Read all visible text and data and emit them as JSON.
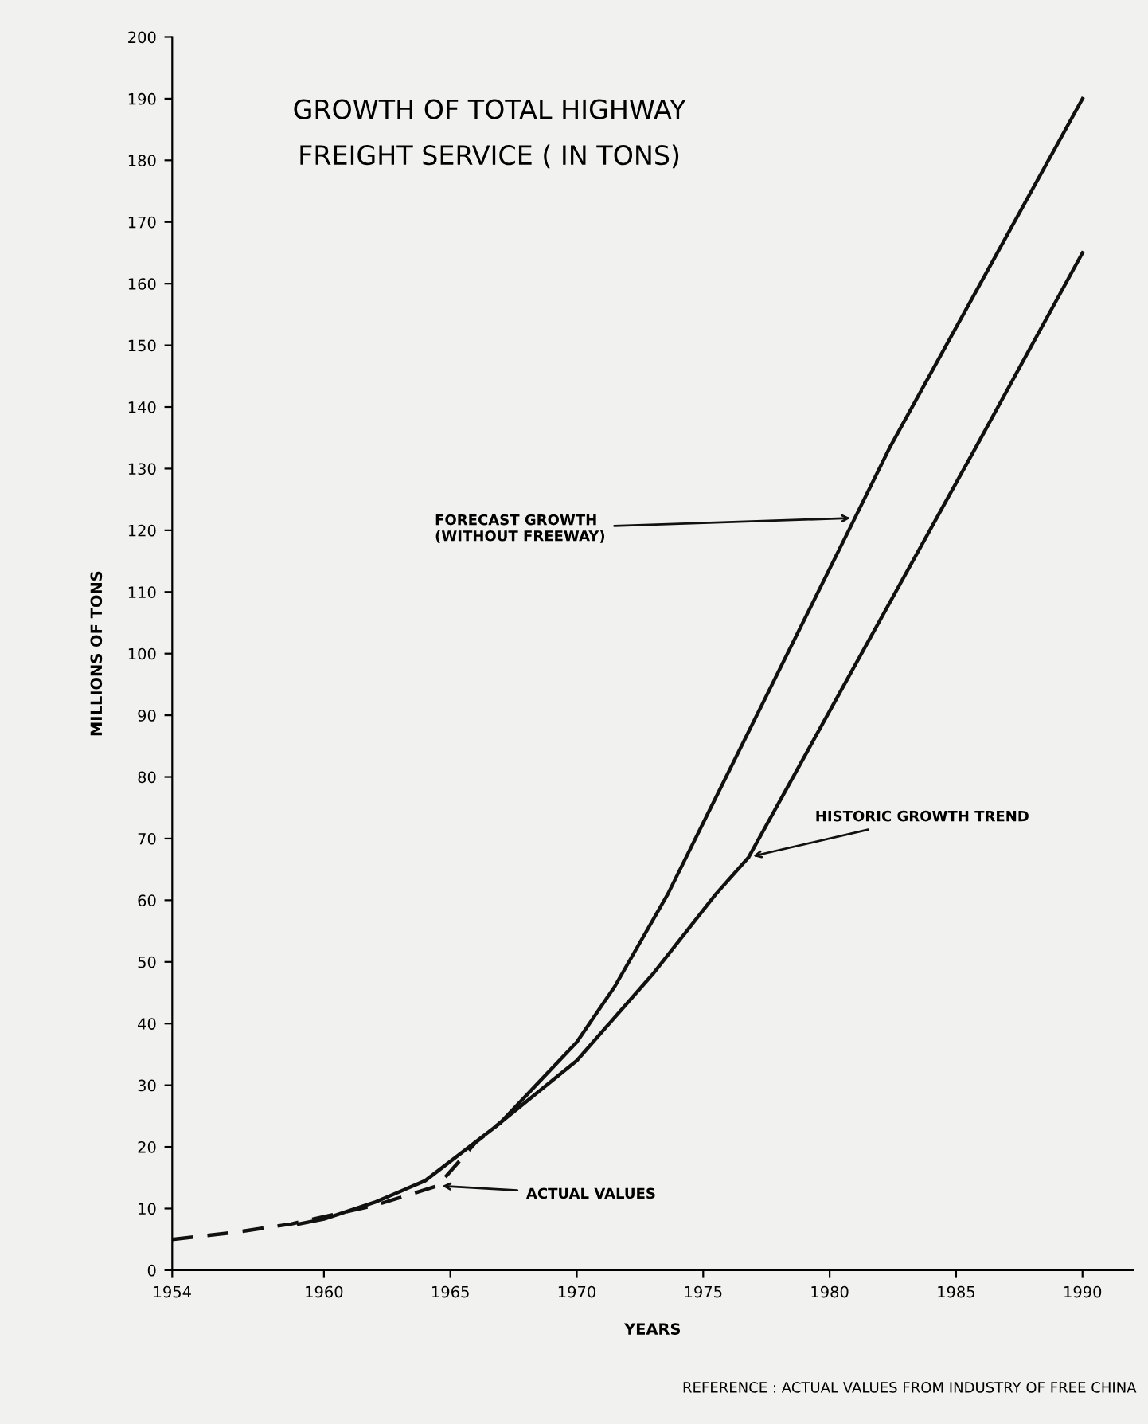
{
  "chart_data": {
    "type": "line",
    "title": "GROWTH OF TOTAL HIGHWAY\nFREIGHT SERVICE ( IN TONS)",
    "xlabel": "YEARS",
    "ylabel": "MILLIONS OF TONS",
    "series": [
      {
        "x": [
          1967,
          1970,
          1971.5,
          1973.6,
          1981,
          1982.4,
          1990
        ],
        "values": [
          24,
          37,
          46,
          61,
          122,
          133.6,
          190
        ],
        "color": "#111111",
        "line_style": "solid"
      },
      {
        "x": [
          1959,
          1960,
          1962,
          1964,
          1966.7,
          1970,
          1973,
          1975.5,
          1976.8,
          1985.8,
          1990
        ],
        "values": [
          7.5,
          8.3,
          11,
          14.5,
          23,
          34,
          48,
          61,
          67,
          133.6,
          165
        ],
        "color": "#111111",
        "line_style": "solid"
      },
      {
        "x": [
          1954,
          1956.6,
          1958.7,
          1962,
          1964.5,
          1966,
          1967
        ],
        "values": [
          5,
          6.2,
          7.5,
          10.5,
          13.7,
          20.7,
          24
        ],
        "color": "#111111",
        "line_style": "dashed"
      }
    ],
    "xlim": [
      1954,
      1992
    ],
    "xticks": [
      1954,
      1960,
      1965,
      1970,
      1975,
      1980,
      1985,
      1990
    ],
    "ylim": [
      0,
      200
    ],
    "yticks": [
      0,
      10,
      20,
      30,
      40,
      50,
      60,
      70,
      80,
      90,
      100,
      110,
      120,
      130,
      140,
      150,
      160,
      170,
      180,
      190,
      200
    ],
    "grid": false,
    "legend": false,
    "marker": "none",
    "annotations": [
      {
        "text": "FORECAST GROWTH\n(WITHOUT FREEWAY)",
        "x": 1981,
        "y": 122
      },
      {
        "text": "HISTORIC GROWTH TREND",
        "x": 1976.8,
        "y": 67
      },
      {
        "text": "ACTUAL VALUES",
        "x": 1964.5,
        "y": 13.7
      },
      "REFERENCE : ACTUAL VALUES FROM INDUSTRY OF FREE CHINA"
    ]
  }
}
